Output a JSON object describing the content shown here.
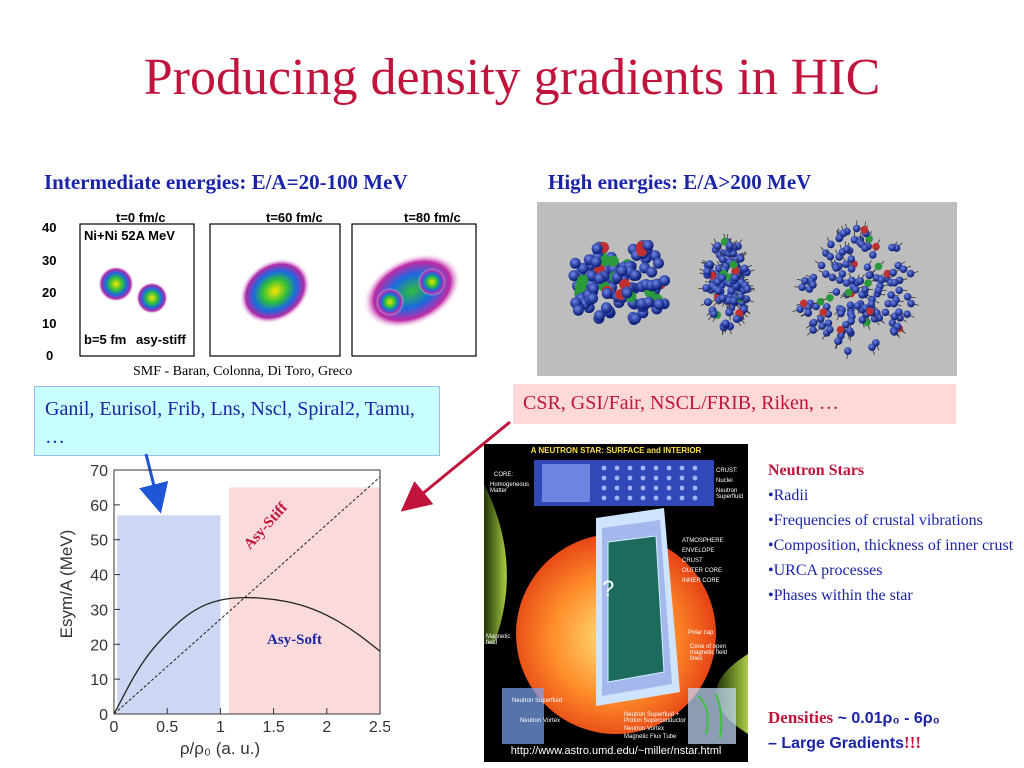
{
  "title": "Producing density gradients in HIC",
  "left_header": "Intermediate energies: E/A=20-100 MeV",
  "right_header": "High energies: E/A>200 MeV",
  "snapshots": {
    "times": [
      "t=0 fm/c",
      "t=60 fm/c",
      "t=80 fm/c"
    ],
    "system": "Ni+Ni 52A MeV",
    "impact": "b=5 fm",
    "eos": "asy-stiff",
    "y_ticks": [
      "40",
      "30",
      "20",
      "10",
      "0"
    ]
  },
  "credit": "SMF - Baran, Colonna, Di Toro, Greco",
  "facilities_left": "Ganil, Eurisol, Frib, Lns, Nscl, Spiral2, Tamu, …",
  "facilities_right": "CSR, GSI/Fair, NSCL/FRIB, Riken, …",
  "neutron_star_figure": {
    "title": "A NEUTRON STAR: SURFACE and INTERIOR",
    "labels": {
      "core": "CORE:",
      "homogeneous": "Homogeneous Matter",
      "crust": "CRUST:",
      "nuclei": "Nuclei",
      "neutron_superfluid": "Neutron Superfluid",
      "atmosphere": "ATMOSPHERE",
      "envelope": "ENVELOPE",
      "crust2": "CRUST",
      "outer_core": "OUTER CORE",
      "inner_core": "INNER CORE",
      "magnetic_field": "Magnetic field",
      "polar_cap": "Polar cap",
      "cone": "Cone of open magnetic field lines",
      "vortex": "Neutron Vortex",
      "ns_superfluid": "Neutron Superfluid",
      "superconductor": "Neutron Superfluid + Proton Superconductor",
      "flux_tube": "Magnetic Flux Tube",
      "question": "?"
    },
    "url": "http://www.astro.umd.edu/~miller/nstar.html"
  },
  "neutron_stars": {
    "heading": "Neutron Stars",
    "items": [
      "Radii",
      "Frequencies of crustal vibrations",
      "Composition, thickness of inner crust",
      "URCA processes",
      "Phases within the star"
    ]
  },
  "densities": {
    "label": "Densities",
    "value": " ~ 0.01ρ₀ - 6ρ₀",
    "line2": "– Large Gradients",
    "excl": "!!!"
  },
  "chart_data": {
    "type": "line",
    "xlabel": "ρ/ρ₀ (a. u.)",
    "ylabel": "Esym/A (MeV)",
    "xlim": [
      0,
      2.5
    ],
    "ylim": [
      0,
      70
    ],
    "x_ticks": [
      "0",
      "0.5",
      "1",
      "1.5",
      "2",
      "2.5"
    ],
    "y_ticks": [
      "0",
      "10",
      "20",
      "30",
      "40",
      "50",
      "60",
      "70"
    ],
    "series": [
      {
        "name": "Asy-Stiff",
        "x": [
          0,
          2.5
        ],
        "y": [
          0,
          68
        ]
      },
      {
        "name": "Asy-Soft",
        "x": [
          0,
          0.25,
          0.5,
          0.75,
          1.0,
          1.25,
          1.5,
          1.75,
          2.0,
          2.25,
          2.5
        ],
        "y": [
          0,
          14.5,
          23.5,
          30,
          33,
          33.5,
          33,
          31.5,
          28.5,
          24,
          18
        ]
      }
    ],
    "regions": [
      {
        "x": [
          0.03,
          1.0
        ],
        "y": [
          0,
          57
        ],
        "color": "#cdd6f2"
      },
      {
        "x": [
          1.08,
          2.5
        ],
        "y": [
          0,
          65
        ],
        "color": "#fadadb"
      }
    ],
    "label_colors": {
      "Asy-Stiff": "#c0143c",
      "Asy-Soft": "#1a24a8"
    }
  },
  "colors": {
    "title": "#c0143c",
    "header": "#1a24a8",
    "left_box": "#c8ffff",
    "right_box": "#ffd8d8",
    "arrow_left": "#1f56d8",
    "arrow_right": "#c0143c"
  }
}
